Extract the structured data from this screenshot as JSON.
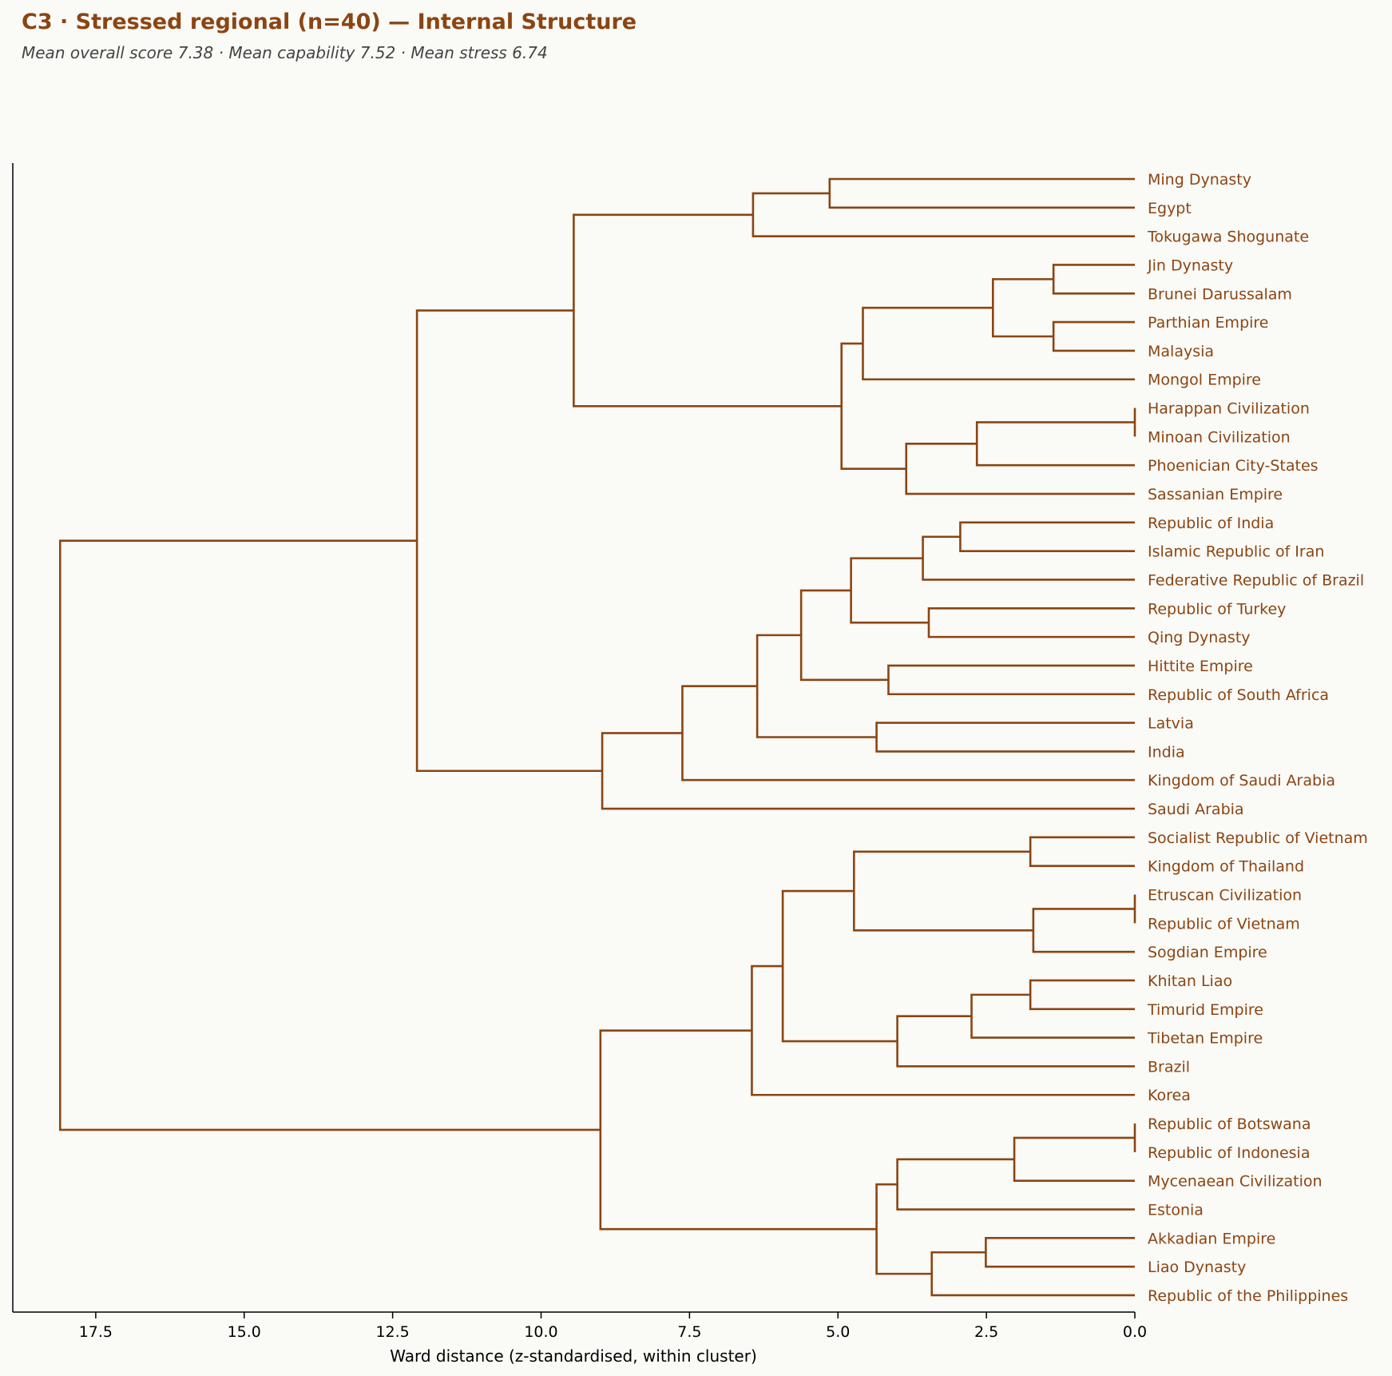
{
  "title": "C3 · Stressed regional (n=40) — Internal Structure",
  "subtitle": "Mean overall score 7.38  ·  Mean capability 7.52  ·  Mean stress 6.74",
  "colors": {
    "link": "#8b4513",
    "label": "#8b4513",
    "axis": "#000000",
    "background": "#fafaf6"
  },
  "chart_data": {
    "type": "dendrogram",
    "orientation": "left",
    "xlabel": "Ward distance (z-standardised, within cluster)",
    "xlim": [
      19.0,
      0.0
    ],
    "xticks": [
      17.5,
      15.0,
      12.5,
      10.0,
      7.5,
      5.0,
      2.5,
      0.0
    ],
    "xtick_labels": [
      "17.5",
      "15.0",
      "12.5",
      "10.0",
      "7.5",
      "5.0",
      "2.5",
      "0.0"
    ],
    "leaves": [
      "Ming Dynasty",
      "Egypt",
      "Tokugawa Shogunate",
      "Jin Dynasty",
      "Brunei Darussalam",
      "Parthian Empire",
      "Malaysia",
      "Mongol Empire",
      "Harappan Civilization",
      "Minoan Civilization",
      "Phoenician City-States",
      "Sassanian Empire",
      "Republic of India",
      "Islamic Republic of Iran",
      "Federative Republic of Brazil",
      "Republic of Turkey",
      "Qing Dynasty",
      "Hittite Empire",
      "Republic of South Africa",
      "Latvia",
      "India",
      "Kingdom of Saudi Arabia",
      "Saudi Arabia",
      "Socialist Republic of Vietnam",
      "Kingdom of Thailand",
      "Etruscan Civilization",
      "Republic of Vietnam",
      "Sogdian Empire",
      "Khitan Liao",
      "Timurid Empire",
      "Tibetan Empire",
      "Brazil",
      "Korea",
      "Republic of Botswana",
      "Republic of Indonesia",
      "Mycenaean Civilization",
      "Estonia",
      "Akkadian Empire",
      "Liao Dynasty",
      "Republic of the Philippines"
    ],
    "merges": [
      {
        "id": "n1",
        "a": "L0",
        "b": "L1",
        "height": 5.14
      },
      {
        "id": "n2",
        "a": "n1",
        "b": "L2",
        "height": 6.43
      },
      {
        "id": "n3",
        "a": "L3",
        "b": "L4",
        "height": 1.37
      },
      {
        "id": "n4",
        "a": "L5",
        "b": "L6",
        "height": 1.37
      },
      {
        "id": "n5",
        "a": "n3",
        "b": "n4",
        "height": 2.39
      },
      {
        "id": "n6",
        "a": "n5",
        "b": "L7",
        "height": 4.58
      },
      {
        "id": "n7",
        "a": "L8",
        "b": "L9",
        "height": 0.0
      },
      {
        "id": "n8",
        "a": "n7",
        "b": "L10",
        "height": 2.66
      },
      {
        "id": "n9",
        "a": "n8",
        "b": "L11",
        "height": 3.85
      },
      {
        "id": "n10",
        "a": "n6",
        "b": "n9",
        "height": 4.94
      },
      {
        "id": "n11",
        "a": "n2",
        "b": "n10",
        "height": 9.45
      },
      {
        "id": "n12",
        "a": "L12",
        "b": "L13",
        "height": 2.94
      },
      {
        "id": "n13",
        "a": "n12",
        "b": "L14",
        "height": 3.57
      },
      {
        "id": "n14",
        "a": "L15",
        "b": "L16",
        "height": 3.47
      },
      {
        "id": "n15",
        "a": "n13",
        "b": "n14",
        "height": 4.78
      },
      {
        "id": "n16",
        "a": "L17",
        "b": "L18",
        "height": 4.15
      },
      {
        "id": "n17",
        "a": "n15",
        "b": "n16",
        "height": 5.62
      },
      {
        "id": "n18",
        "a": "L19",
        "b": "L20",
        "height": 4.35
      },
      {
        "id": "n19",
        "a": "n17",
        "b": "n18",
        "height": 6.36
      },
      {
        "id": "n20",
        "a": "n19",
        "b": "L21",
        "height": 7.62
      },
      {
        "id": "n21",
        "a": "n20",
        "b": "L22",
        "height": 8.97
      },
      {
        "id": "n22",
        "a": "n11",
        "b": "n21",
        "height": 12.09
      },
      {
        "id": "n23",
        "a": "L23",
        "b": "L24",
        "height": 1.76
      },
      {
        "id": "n24",
        "a": "L25",
        "b": "L26",
        "height": 0.0
      },
      {
        "id": "n25",
        "a": "n24",
        "b": "L27",
        "height": 1.71
      },
      {
        "id": "n26",
        "a": "n23",
        "b": "n25",
        "height": 4.73
      },
      {
        "id": "n27",
        "a": "L28",
        "b": "L29",
        "height": 1.76
      },
      {
        "id": "n28",
        "a": "n27",
        "b": "L30",
        "height": 2.75
      },
      {
        "id": "n29",
        "a": "n28",
        "b": "L31",
        "height": 4.0
      },
      {
        "id": "n30",
        "a": "n26",
        "b": "n29",
        "height": 5.93
      },
      {
        "id": "n31",
        "a": "n30",
        "b": "L32",
        "height": 6.45
      },
      {
        "id": "n32",
        "a": "L33",
        "b": "L34",
        "height": 0.0
      },
      {
        "id": "n33",
        "a": "n32",
        "b": "L35",
        "height": 2.03
      },
      {
        "id": "n34",
        "a": "n33",
        "b": "L36",
        "height": 4.0
      },
      {
        "id": "n35",
        "a": "L37",
        "b": "L38",
        "height": 2.51
      },
      {
        "id": "n36",
        "a": "n35",
        "b": "L39",
        "height": 3.42
      },
      {
        "id": "n37",
        "a": "n34",
        "b": "n36",
        "height": 4.35
      },
      {
        "id": "n38",
        "a": "n31",
        "b": "n37",
        "height": 9.0
      },
      {
        "id": "n39",
        "a": "n22",
        "b": "n38",
        "height": 18.1
      }
    ]
  }
}
